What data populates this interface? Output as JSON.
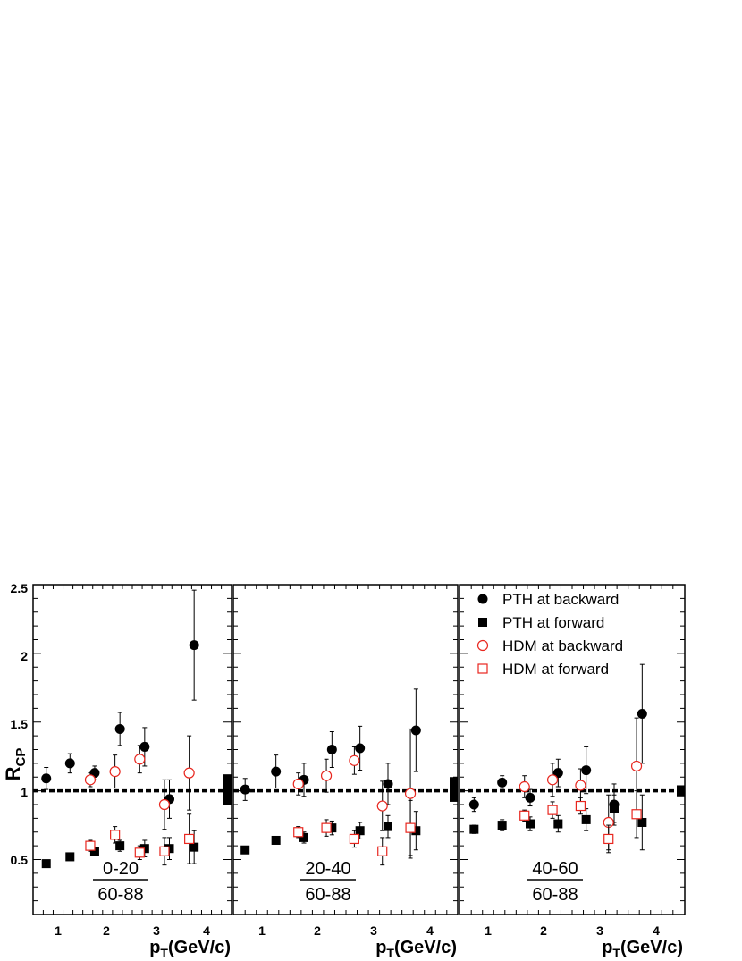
{
  "chart_data": {
    "type": "scatter",
    "ylabel_main": "R",
    "ylabel_sub": "CP",
    "xlabel_main": "p",
    "xlabel_sub": "T",
    "xlabel_rest": "(GeV/c)",
    "ylim": [
      0.1,
      2.5
    ],
    "yticks": [
      "0.5",
      "1",
      "1.5",
      "2",
      "2.5"
    ],
    "reference_line": 1,
    "legend": {
      "placement": "top-right",
      "entries": [
        {
          "label": "PTH at backward",
          "marker": "filled-circle",
          "color": "#000000"
        },
        {
          "label": "PTH at forward",
          "marker": "filled-square",
          "color": "#000000"
        },
        {
          "label": "HDM at backward",
          "marker": "open-circle",
          "color": "#e8261e"
        },
        {
          "label": "HDM at forward",
          "marker": "open-square",
          "color": "#e8261e"
        }
      ]
    },
    "panels": [
      {
        "numerator": "0-20",
        "denominator": "60-88",
        "xticks": [
          "1",
          "2",
          "3",
          "4"
        ],
        "xlim": [
          0.5,
          4.5
        ],
        "norm_uncertainty": [
          0.9,
          1.12
        ],
        "series": [
          {
            "name": "PTH at backward",
            "points": [
              {
                "x": 0.76,
                "y": 1.09,
                "err": 0.08
              },
              {
                "x": 1.24,
                "y": 1.2,
                "err": 0.07
              },
              {
                "x": 1.74,
                "y": 1.13,
                "err": 0.05
              },
              {
                "x": 2.25,
                "y": 1.45,
                "err": 0.12
              },
              {
                "x": 2.75,
                "y": 1.32,
                "err": 0.14
              },
              {
                "x": 3.25,
                "y": 0.94,
                "err": 0.14
              },
              {
                "x": 3.75,
                "y": 2.06,
                "err": 0.4
              }
            ]
          },
          {
            "name": "PTH at forward",
            "points": [
              {
                "x": 0.76,
                "y": 0.47,
                "err": 0.02
              },
              {
                "x": 1.24,
                "y": 0.52,
                "err": 0.02
              },
              {
                "x": 1.74,
                "y": 0.56,
                "err": 0.03
              },
              {
                "x": 2.25,
                "y": 0.6,
                "err": 0.04
              },
              {
                "x": 2.75,
                "y": 0.58,
                "err": 0.06
              },
              {
                "x": 3.25,
                "y": 0.58,
                "err": 0.08
              },
              {
                "x": 3.75,
                "y": 0.59,
                "err": 0.12
              }
            ]
          },
          {
            "name": "HDM at backward",
            "points": [
              {
                "x": 1.65,
                "y": 1.08,
                "err": 0.05
              },
              {
                "x": 2.15,
                "y": 1.14,
                "err": 0.12
              },
              {
                "x": 2.65,
                "y": 1.23,
                "err": 0.1
              },
              {
                "x": 3.15,
                "y": 0.9,
                "err": 0.18
              },
              {
                "x": 3.65,
                "y": 1.13,
                "err": 0.27
              }
            ]
          },
          {
            "name": "HDM at forward",
            "points": [
              {
                "x": 1.65,
                "y": 0.6,
                "err": 0.04
              },
              {
                "x": 2.15,
                "y": 0.68,
                "err": 0.06
              },
              {
                "x": 2.65,
                "y": 0.55,
                "err": 0.05
              },
              {
                "x": 3.15,
                "y": 0.56,
                "err": 0.1
              },
              {
                "x": 3.65,
                "y": 0.65,
                "err": 0.18
              }
            ]
          }
        ]
      },
      {
        "numerator": "20-40",
        "denominator": "60-88",
        "xticks": [
          "1",
          "2",
          "3",
          "4"
        ],
        "xlim": [
          0.5,
          4.5
        ],
        "norm_uncertainty": [
          0.92,
          1.1
        ],
        "series": [
          {
            "name": "PTH at backward",
            "points": [
              {
                "x": 0.7,
                "y": 1.01,
                "err": 0.08
              },
              {
                "x": 1.25,
                "y": 1.14,
                "err": 0.12
              },
              {
                "x": 1.75,
                "y": 1.08,
                "err": 0.12
              },
              {
                "x": 2.25,
                "y": 1.3,
                "err": 0.13
              },
              {
                "x": 2.75,
                "y": 1.31,
                "err": 0.16
              },
              {
                "x": 3.25,
                "y": 1.05,
                "err": 0.15
              },
              {
                "x": 3.75,
                "y": 1.44,
                "err": 0.3
              }
            ]
          },
          {
            "name": "PTH at forward",
            "points": [
              {
                "x": 0.7,
                "y": 0.57,
                "err": 0.02
              },
              {
                "x": 1.25,
                "y": 0.64,
                "err": 0.02
              },
              {
                "x": 1.75,
                "y": 0.66,
                "err": 0.04
              },
              {
                "x": 2.25,
                "y": 0.73,
                "err": 0.05
              },
              {
                "x": 2.75,
                "y": 0.71,
                "err": 0.06
              },
              {
                "x": 3.25,
                "y": 0.74,
                "err": 0.08
              },
              {
                "x": 3.75,
                "y": 0.71,
                "err": 0.14
              }
            ]
          },
          {
            "name": "HDM at backward",
            "points": [
              {
                "x": 1.65,
                "y": 1.05,
                "err": 0.08
              },
              {
                "x": 2.15,
                "y": 1.11,
                "err": 0.12
              },
              {
                "x": 2.65,
                "y": 1.22,
                "err": 0.1
              },
              {
                "x": 3.15,
                "y": 0.89,
                "err": 0.18
              },
              {
                "x": 3.65,
                "y": 0.98,
                "err": 0.47
              }
            ]
          },
          {
            "name": "HDM at forward",
            "points": [
              {
                "x": 1.65,
                "y": 0.7,
                "err": 0.04
              },
              {
                "x": 2.15,
                "y": 0.73,
                "err": 0.06
              },
              {
                "x": 2.65,
                "y": 0.65,
                "err": 0.06
              },
              {
                "x": 3.15,
                "y": 0.56,
                "err": 0.1
              },
              {
                "x": 3.65,
                "y": 0.73,
                "err": 0.2
              }
            ]
          }
        ]
      },
      {
        "numerator": "40-60",
        "denominator": "60-88",
        "xticks": [
          "1",
          "2",
          "3",
          "4"
        ],
        "xlim": [
          0.5,
          4.5
        ],
        "norm_uncertainty": [
          0.96,
          1.04
        ],
        "series": [
          {
            "name": "PTH at backward",
            "points": [
              {
                "x": 0.75,
                "y": 0.9,
                "err": 0.05
              },
              {
                "x": 1.25,
                "y": 1.06,
                "err": 0.05
              },
              {
                "x": 1.75,
                "y": 0.95,
                "err": 0.06
              },
              {
                "x": 2.25,
                "y": 1.13,
                "err": 0.1
              },
              {
                "x": 2.75,
                "y": 1.15,
                "err": 0.17
              },
              {
                "x": 3.25,
                "y": 0.9,
                "err": 0.15
              },
              {
                "x": 3.75,
                "y": 1.56,
                "err": 0.36
              }
            ]
          },
          {
            "name": "PTH at forward",
            "points": [
              {
                "x": 0.75,
                "y": 0.72,
                "err": 0.03
              },
              {
                "x": 1.25,
                "y": 0.75,
                "err": 0.04
              },
              {
                "x": 1.75,
                "y": 0.76,
                "err": 0.05
              },
              {
                "x": 2.25,
                "y": 0.76,
                "err": 0.06
              },
              {
                "x": 2.75,
                "y": 0.79,
                "err": 0.08
              },
              {
                "x": 3.25,
                "y": 0.87,
                "err": 0.1
              },
              {
                "x": 3.75,
                "y": 0.77,
                "err": 0.2
              }
            ]
          },
          {
            "name": "HDM at backward",
            "points": [
              {
                "x": 1.65,
                "y": 1.03,
                "err": 0.08
              },
              {
                "x": 2.15,
                "y": 1.08,
                "err": 0.12
              },
              {
                "x": 2.65,
                "y": 1.04,
                "err": 0.12
              },
              {
                "x": 3.15,
                "y": 0.77,
                "err": 0.2
              },
              {
                "x": 3.65,
                "y": 1.18,
                "err": 0.35
              }
            ]
          },
          {
            "name": "HDM at forward",
            "points": [
              {
                "x": 1.65,
                "y": 0.82,
                "err": 0.04
              },
              {
                "x": 2.15,
                "y": 0.86,
                "err": 0.06
              },
              {
                "x": 2.65,
                "y": 0.89,
                "err": 0.06
              },
              {
                "x": 3.15,
                "y": 0.65,
                "err": 0.1
              },
              {
                "x": 3.65,
                "y": 0.83,
                "err": 0.17
              }
            ]
          }
        ]
      }
    ]
  }
}
